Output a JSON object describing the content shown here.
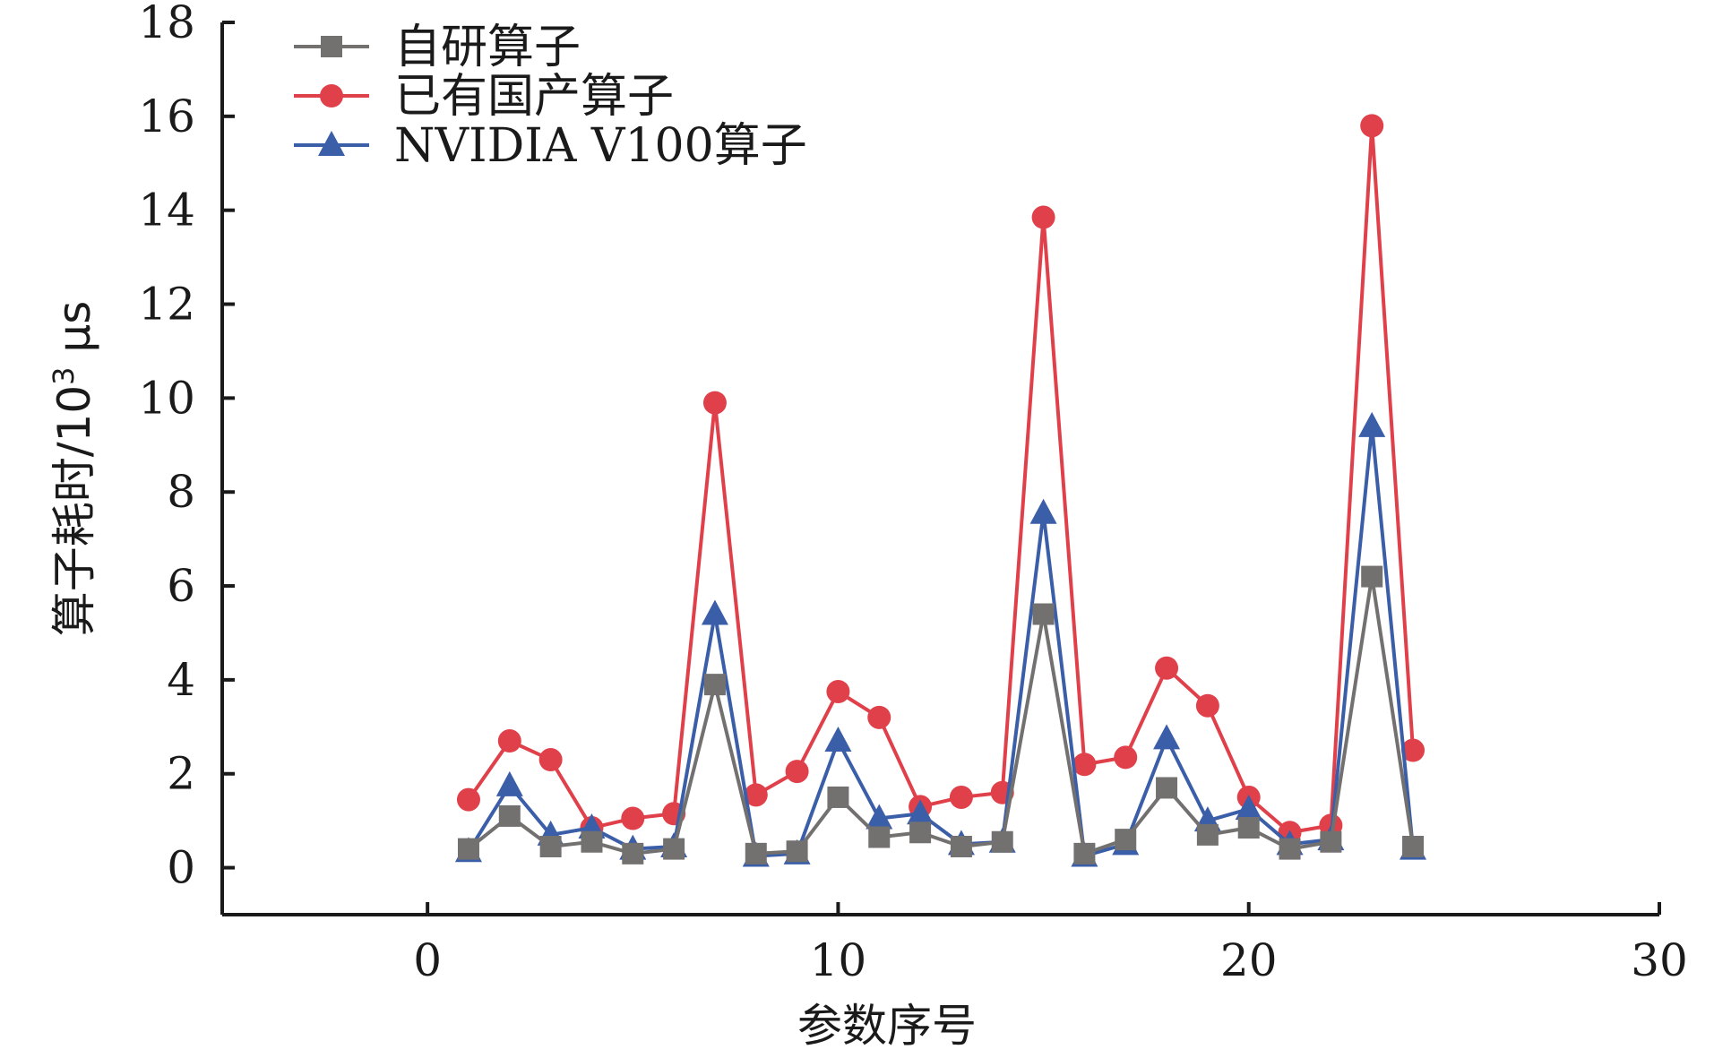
{
  "chart_data": {
    "type": "line",
    "title": "",
    "xlabel": "参数序号",
    "ylabel": "算子耗时/10³ μs",
    "ylabel_parts": {
      "main": "算子耗时/10",
      "sup": "3",
      "unit": " μs"
    },
    "xlim": [
      -5,
      30
    ],
    "ylim": [
      -1,
      18
    ],
    "x_ticks": [
      0,
      10,
      20,
      30
    ],
    "y_ticks": [
      0,
      2,
      4,
      6,
      8,
      10,
      12,
      14,
      16,
      18
    ],
    "grid": false,
    "legend_position": "top-left",
    "x": [
      1,
      2,
      3,
      4,
      5,
      6,
      7,
      8,
      9,
      10,
      11,
      12,
      13,
      14,
      15,
      16,
      17,
      18,
      19,
      20,
      21,
      22,
      23,
      24
    ],
    "series": [
      {
        "name": "自研算子",
        "color": "#737070",
        "marker": "square",
        "values": [
          0.4,
          1.1,
          0.45,
          0.55,
          0.3,
          0.4,
          3.9,
          0.3,
          0.35,
          1.5,
          0.65,
          0.75,
          0.45,
          0.55,
          5.4,
          0.3,
          0.6,
          1.7,
          0.7,
          0.85,
          0.4,
          0.55,
          6.2,
          0.45
        ]
      },
      {
        "name": "已有国产算子",
        "color": "#e0404a",
        "marker": "circle",
        "values": [
          1.45,
          2.7,
          2.3,
          0.85,
          1.05,
          1.15,
          9.9,
          1.55,
          2.05,
          3.75,
          3.2,
          1.3,
          1.5,
          1.6,
          13.85,
          2.2,
          2.35,
          4.25,
          3.45,
          1.5,
          0.75,
          0.9,
          15.8,
          2.5
        ]
      },
      {
        "name": "NVIDIA V100算子",
        "color": "#3b5ea8",
        "marker": "triangle",
        "values": [
          0.35,
          1.75,
          0.7,
          0.85,
          0.4,
          0.45,
          5.4,
          0.25,
          0.3,
          2.7,
          1.05,
          1.15,
          0.5,
          0.55,
          7.55,
          0.25,
          0.5,
          2.75,
          1.0,
          1.25,
          0.5,
          0.6,
          9.4,
          0.4
        ]
      }
    ]
  }
}
